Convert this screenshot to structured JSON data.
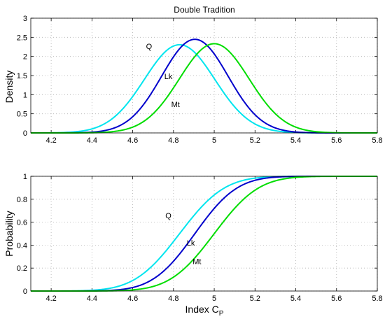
{
  "chart_data": [
    {
      "type": "line",
      "title": "Double Tradition",
      "xlabel": "",
      "ylabel": "Density",
      "xlim": [
        4.1,
        5.8
      ],
      "ylim": [
        0,
        3
      ],
      "xticks": [
        "4.2",
        "4.4",
        "4.6",
        "4.8",
        "5",
        "5.2",
        "5.4",
        "5.6",
        "5.8"
      ],
      "yticks": [
        "0",
        "0.5",
        "1",
        "1.5",
        "2",
        "2.5",
        "3"
      ],
      "grid": true,
      "series": [
        {
          "name": "Q",
          "color": "#00e5ee",
          "mean": 4.83,
          "sd": 0.173,
          "label_at": [
            4.68,
            2.27
          ]
        },
        {
          "name": "Lk",
          "color": "#0000cc",
          "mean": 4.905,
          "sd": 0.163,
          "label_at": [
            4.775,
            1.48
          ]
        },
        {
          "name": "Mt",
          "color": "#00dd00",
          "mean": 5.0,
          "sd": 0.171,
          "label_at": [
            4.81,
            0.75
          ]
        }
      ]
    },
    {
      "type": "line",
      "title": "",
      "xlabel": "Index C",
      "xlabel_sub": "P",
      "ylabel": "Probability",
      "xlim": [
        4.1,
        5.8
      ],
      "ylim": [
        0,
        1
      ],
      "xticks": [
        "4.2",
        "4.4",
        "4.6",
        "4.8",
        "5",
        "5.2",
        "5.4",
        "5.6",
        "5.8"
      ],
      "yticks": [
        "0",
        "0.2",
        "0.4",
        "0.6",
        "0.8",
        "1"
      ],
      "grid": true,
      "series": [
        {
          "name": "Q",
          "color": "#00e5ee",
          "mean": 4.83,
          "sd": 0.173,
          "label_at": [
            4.775,
            0.66
          ]
        },
        {
          "name": "Lk",
          "color": "#0000cc",
          "mean": 4.905,
          "sd": 0.163,
          "label_at": [
            4.885,
            0.42
          ]
        },
        {
          "name": "Mt",
          "color": "#00dd00",
          "mean": 5.0,
          "sd": 0.171,
          "label_at": [
            4.915,
            0.26
          ]
        }
      ]
    }
  ]
}
